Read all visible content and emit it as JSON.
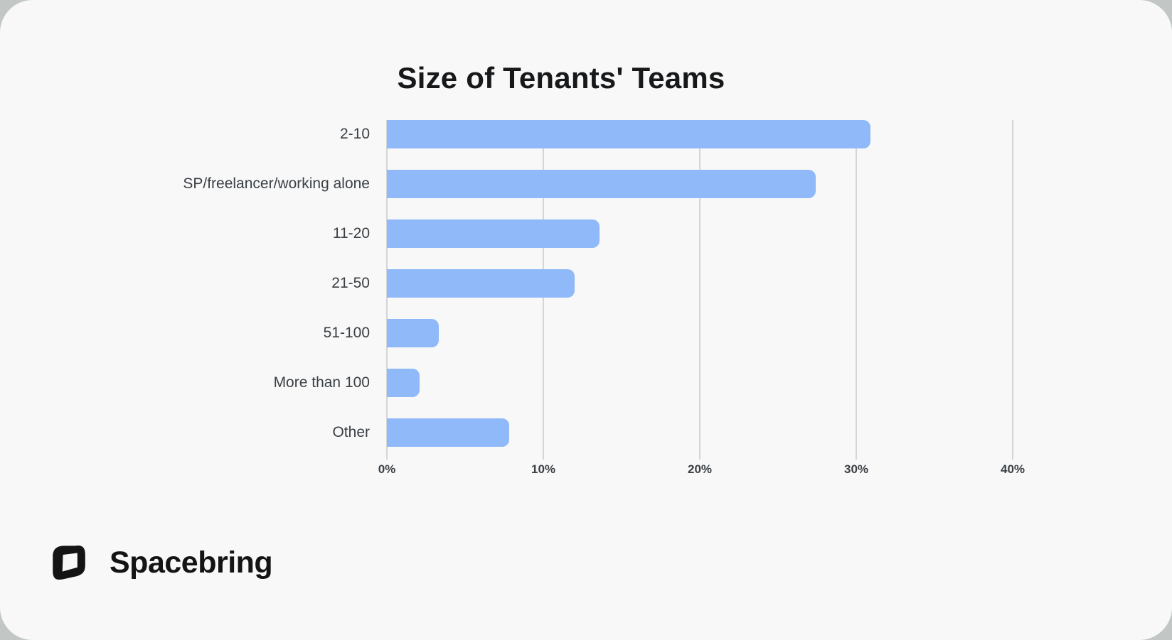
{
  "page": {
    "title": "Size of Tenants' Teams"
  },
  "brand": {
    "name": "Spacebring"
  },
  "chart_data": {
    "type": "bar",
    "orientation": "horizontal",
    "title": "Size of Tenants' Teams",
    "categories": [
      "2-10",
      "SP/freelancer/working alone",
      "11-20",
      "21-50",
      "51-100",
      "More than 100",
      "Other"
    ],
    "values": [
      30.9,
      27.4,
      13.6,
      12.0,
      3.3,
      2.1,
      7.8
    ],
    "value_suffix": "%",
    "xlabel": "",
    "ylabel": "",
    "x_ticks": [
      "0%",
      "10%",
      "20%",
      "30%",
      "40%"
    ],
    "x_tick_values": [
      0,
      10,
      20,
      30,
      40
    ],
    "xlim": [
      0,
      44
    ],
    "grid": true,
    "legend": false,
    "bar_color": "#8fb9f8",
    "gridline_color": "#d4d5d6",
    "label_color": "#3b4045",
    "title_color": "#17181a",
    "card_background": "#f8f8f8",
    "outer_background": "#c2c7c6"
  }
}
